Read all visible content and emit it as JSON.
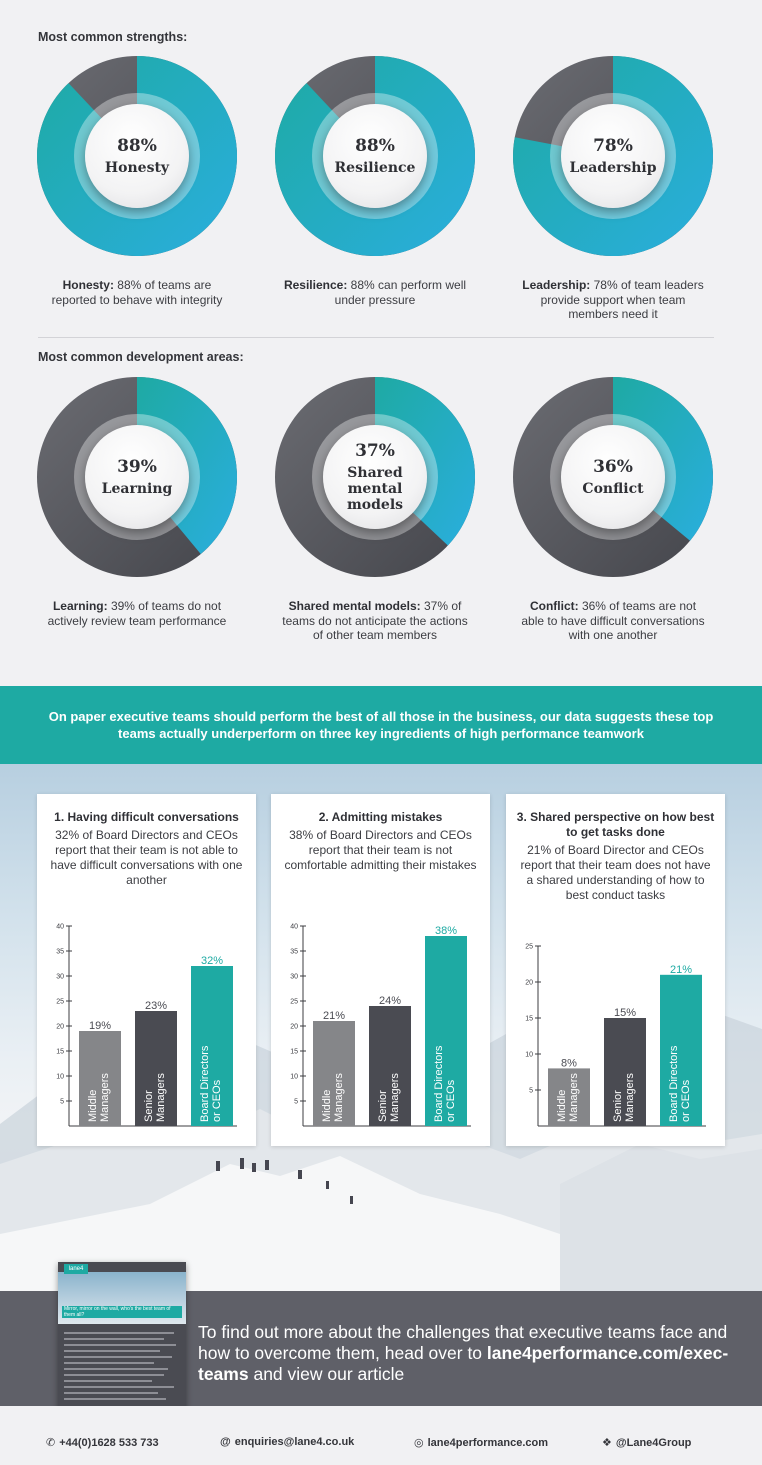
{
  "strengths": {
    "title": "Most common strengths:",
    "items": [
      {
        "value": 88,
        "pct_label": "88%",
        "label": "Honesty",
        "caption_bold": "Honesty:",
        "caption": " 88% of teams are reported to behave with integrity"
      },
      {
        "value": 88,
        "pct_label": "88%",
        "label": "Resilience",
        "caption_bold": "Resilience:",
        "caption": " 88% can perform well under pressure"
      },
      {
        "value": 78,
        "pct_label": "78%",
        "label": "Leadership",
        "caption_bold": "Leadership:",
        "caption": " 78% of team leaders provide support when team members need it"
      }
    ]
  },
  "development": {
    "title": "Most common development areas:",
    "items": [
      {
        "value": 39,
        "pct_label": "39%",
        "label": "Learning",
        "caption_bold": "Learning:",
        "caption": " 39% of teams do not actively review team performance"
      },
      {
        "value": 37,
        "pct_label": "37%",
        "label": "Shared mental models",
        "caption_bold": "Shared mental models:",
        "caption": " 37% of teams do not anticipate the actions of other team members"
      },
      {
        "value": 36,
        "pct_label": "36%",
        "label": "Conflict",
        "caption_bold": "Conflict:",
        "caption": " 36% of teams are not able to have difficult conversations with one another"
      }
    ]
  },
  "banner": {
    "text": "On paper executive teams should perform the best of all those in the business, our data suggests these top teams actually underperform on three key ingredients of high performance teamwork"
  },
  "colors": {
    "teal": "#1eaaa3",
    "blue": "#2aaede",
    "dark": "#4a4b52",
    "gray": "#858689",
    "banner": "#1eaaa3",
    "footer": "#5f6068"
  },
  "chart_data": [
    {
      "type": "bar",
      "title": "1. Having difficult conversations",
      "description": "32% of Board Directors and CEOs report that their team is not able to have difficult conversations with one another",
      "categories": [
        "Middle Managers",
        "Senior Managers",
        "Board Directors or CEOs"
      ],
      "values": [
        19,
        23,
        32
      ],
      "value_labels": [
        "19%",
        "23%",
        "32%"
      ],
      "ylim": [
        0,
        40
      ],
      "yticks": [
        5,
        10,
        15,
        20,
        25,
        30,
        35,
        40
      ]
    },
    {
      "type": "bar",
      "title": "2. Admitting mistakes",
      "description": "38% of Board Directors and CEOs report that their team is not comfortable admitting their mistakes",
      "categories": [
        "Middle Managers",
        "Senior Managers",
        "Board Directors or CEOs"
      ],
      "values": [
        21,
        24,
        38
      ],
      "value_labels": [
        "21%",
        "24%",
        "38%"
      ],
      "ylim": [
        0,
        40
      ],
      "yticks": [
        5,
        10,
        15,
        20,
        25,
        30,
        35,
        40
      ]
    },
    {
      "type": "bar",
      "title": "3. Shared perspective on how best to get tasks done",
      "description": "21% of Board Director and CEOs report that their team does not have a shared understanding of how to best conduct tasks",
      "categories": [
        "Middle Managers",
        "Senior Managers",
        "Board Directors or CEOs"
      ],
      "values": [
        8,
        15,
        21
      ],
      "value_labels": [
        "8%",
        "15%",
        "21%"
      ],
      "ylim": [
        0,
        25
      ],
      "yticks": [
        5,
        10,
        15,
        20,
        25
      ]
    }
  ],
  "footer": {
    "text": "To find out more about the challenges that executive teams face and how to overcome them, head over to",
    "link": "lane4performance.com/exec-teams",
    "tail": " and view our article",
    "brochure_logo": "lane4",
    "brochure_heading": "Mirror, mirror on the wall, who's the best team of them all?"
  },
  "contacts": {
    "phone": "+44(0)1628 533 733",
    "email": "enquiries@lane4.co.uk",
    "web": "lane4performance.com",
    "twitter": "@Lane4Group"
  }
}
